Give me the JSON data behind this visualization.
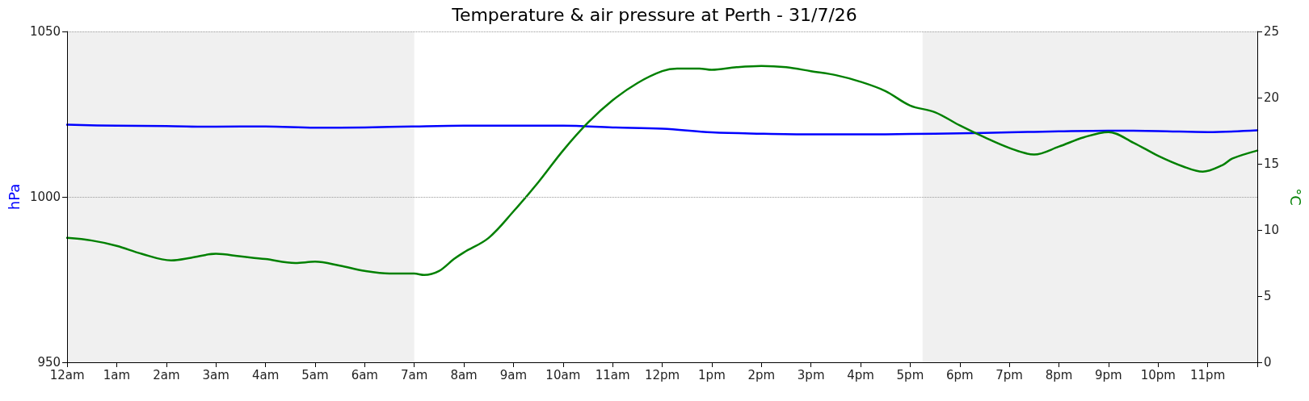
{
  "chart_data": {
    "type": "line",
    "title": "Temperature & air pressure at Perth - 31/7/26",
    "ylabel": "hPa",
    "y2label": "°C",
    "xlim": [
      "--07-31T00:00",
      "--08-01T00:00"
    ],
    "xticks": [
      {
        "value": "--07-31T00:00",
        "label": "12am"
      },
      {
        "value": "--07-31T01:00",
        "label": "1am"
      },
      {
        "value": "--07-31T02:00",
        "label": "2am"
      },
      {
        "value": "--07-31T03:00",
        "label": "3am"
      },
      {
        "value": "--07-31T04:00",
        "label": "4am"
      },
      {
        "value": "--07-31T05:00",
        "label": "5am"
      },
      {
        "value": "--07-31T06:00",
        "label": "6am"
      },
      {
        "value": "--07-31T07:00",
        "label": "7am"
      },
      {
        "value": "--07-31T08:00",
        "label": "8am"
      },
      {
        "value": "--07-31T09:00",
        "label": "9am"
      },
      {
        "value": "--07-31T10:00",
        "label": "10am"
      },
      {
        "value": "--07-31T11:00",
        "label": "11am"
      },
      {
        "value": "--07-31T12:00",
        "label": "12pm"
      },
      {
        "value": "--07-31T13:00",
        "label": "1pm"
      },
      {
        "value": "--07-31T14:00",
        "label": "2pm"
      },
      {
        "value": "--07-31T15:00",
        "label": "3pm"
      },
      {
        "value": "--07-31T16:00",
        "label": "4pm"
      },
      {
        "value": "--07-31T17:00",
        "label": "5pm"
      },
      {
        "value": "--07-31T18:00",
        "label": "6pm"
      },
      {
        "value": "--07-31T19:00",
        "label": "7pm"
      },
      {
        "value": "--07-31T20:00",
        "label": "8pm"
      },
      {
        "value": "--07-31T21:00",
        "label": "9pm"
      },
      {
        "value": "--07-31T22:00",
        "label": "10pm"
      },
      {
        "value": "--07-31T23:00",
        "label": "11pm"
      },
      {
        "value": "--08-01T00:00",
        "label": null
      }
    ],
    "ylim": [
      950,
      1050
    ],
    "yticks": [
      950,
      1000,
      1050
    ],
    "y2lim": [
      0,
      25
    ],
    "y2ticks": [
      0,
      5,
      10,
      15,
      20,
      25
    ],
    "grid": "y",
    "bands": [
      {
        "axis": "x",
        "from": "--07-31T00:00",
        "to": "--07-31T07:00",
        "color": "#f0f0f0"
      },
      {
        "axis": "x",
        "from": "--07-31T17:15",
        "to": "--08-01T00:00",
        "color": "#f0f0f0"
      }
    ],
    "series": [
      {
        "color": "#0000ff",
        "x": [
          "--07-31T00:00",
          "--07-31T01:00",
          "--07-31T02:00",
          "--07-31T03:00",
          "--07-31T04:00",
          "--07-31T05:00",
          "--07-31T06:00",
          "--07-31T07:00",
          "--07-31T08:00",
          "--07-31T09:00",
          "--07-31T10:00",
          "--07-31T11:00",
          "--07-31T12:00",
          "--07-31T13:00",
          "--07-31T14:00",
          "--07-31T15:00",
          "--07-31T16:00",
          "--07-31T17:00",
          "--07-31T18:00",
          "--07-31T19:00",
          "--07-31T20:00",
          "--07-31T21:00",
          "--07-31T22:00",
          "--07-31T23:00",
          "--08-01T00:00"
        ],
        "values": [
          1021.8,
          1021.5,
          1021.4,
          1021.2,
          1021.3,
          1020.9,
          1021.0,
          1021.3,
          1021.5,
          1021.5,
          1021.5,
          1021.0,
          1020.6,
          1019.5,
          1019.1,
          1018.9,
          1018.9,
          1019.0,
          1019.2,
          1019.5,
          1019.8,
          1020.0,
          1019.9,
          1019.6,
          1020.1
        ]
      },
      {
        "color": "#008000",
        "axis": "y2",
        "x": [
          "--07-31T00:00",
          "--07-31T00:30",
          "--07-31T01:00",
          "--07-31T01:30",
          "--07-31T02:06",
          "--07-31T02:30",
          "--07-31T03:00",
          "--07-31T03:30",
          "--07-31T04:00",
          "--07-31T04:36",
          "--07-31T05:00",
          "--07-31T05:30",
          "--07-31T06:00",
          "--07-31T06:30",
          "--07-31T07:00",
          "--07-31T07:12",
          "--07-31T07:30",
          "--07-31T07:48",
          "--07-31T08:00",
          "--07-31T08:30",
          "--07-31T09:00",
          "--07-31T09:30",
          "--07-31T10:00",
          "--07-31T10:30",
          "--07-31T11:00",
          "--07-31T11:30",
          "--07-31T12:00",
          "--07-31T12:18",
          "--07-31T12:45",
          "--07-31T13:00",
          "--07-31T13:30",
          "--07-31T14:00",
          "--07-31T14:30",
          "--07-31T15:00",
          "--07-31T15:30",
          "--07-31T16:00",
          "--07-31T16:30",
          "--07-31T17:00",
          "--07-31T17:30",
          "--07-31T18:00",
          "--07-31T18:30",
          "--07-31T19:00",
          "--07-31T19:30",
          "--07-31T20:00",
          "--07-31T20:30",
          "--07-31T21:00",
          "--07-31T21:30",
          "--07-31T22:00",
          "--07-31T22:30",
          "--07-31T22:54",
          "--07-31T23:18",
          "--07-31T23:30",
          "--08-01T00:00"
        ],
        "values": [
          9.4,
          9.2,
          8.8,
          8.2,
          7.7,
          7.9,
          8.2,
          8.0,
          7.8,
          7.5,
          7.6,
          7.3,
          6.9,
          6.7,
          6.7,
          6.6,
          6.9,
          7.8,
          8.3,
          9.4,
          11.4,
          13.6,
          16.0,
          18.1,
          19.8,
          21.1,
          22.0,
          22.2,
          22.2,
          22.1,
          22.3,
          22.4,
          22.3,
          22.0,
          21.7,
          21.2,
          20.5,
          19.4,
          18.9,
          17.9,
          17.0,
          16.2,
          15.7,
          16.3,
          17.0,
          17.4,
          16.6,
          15.6,
          14.8,
          14.4,
          14.9,
          15.4,
          16.0
        ]
      }
    ]
  }
}
